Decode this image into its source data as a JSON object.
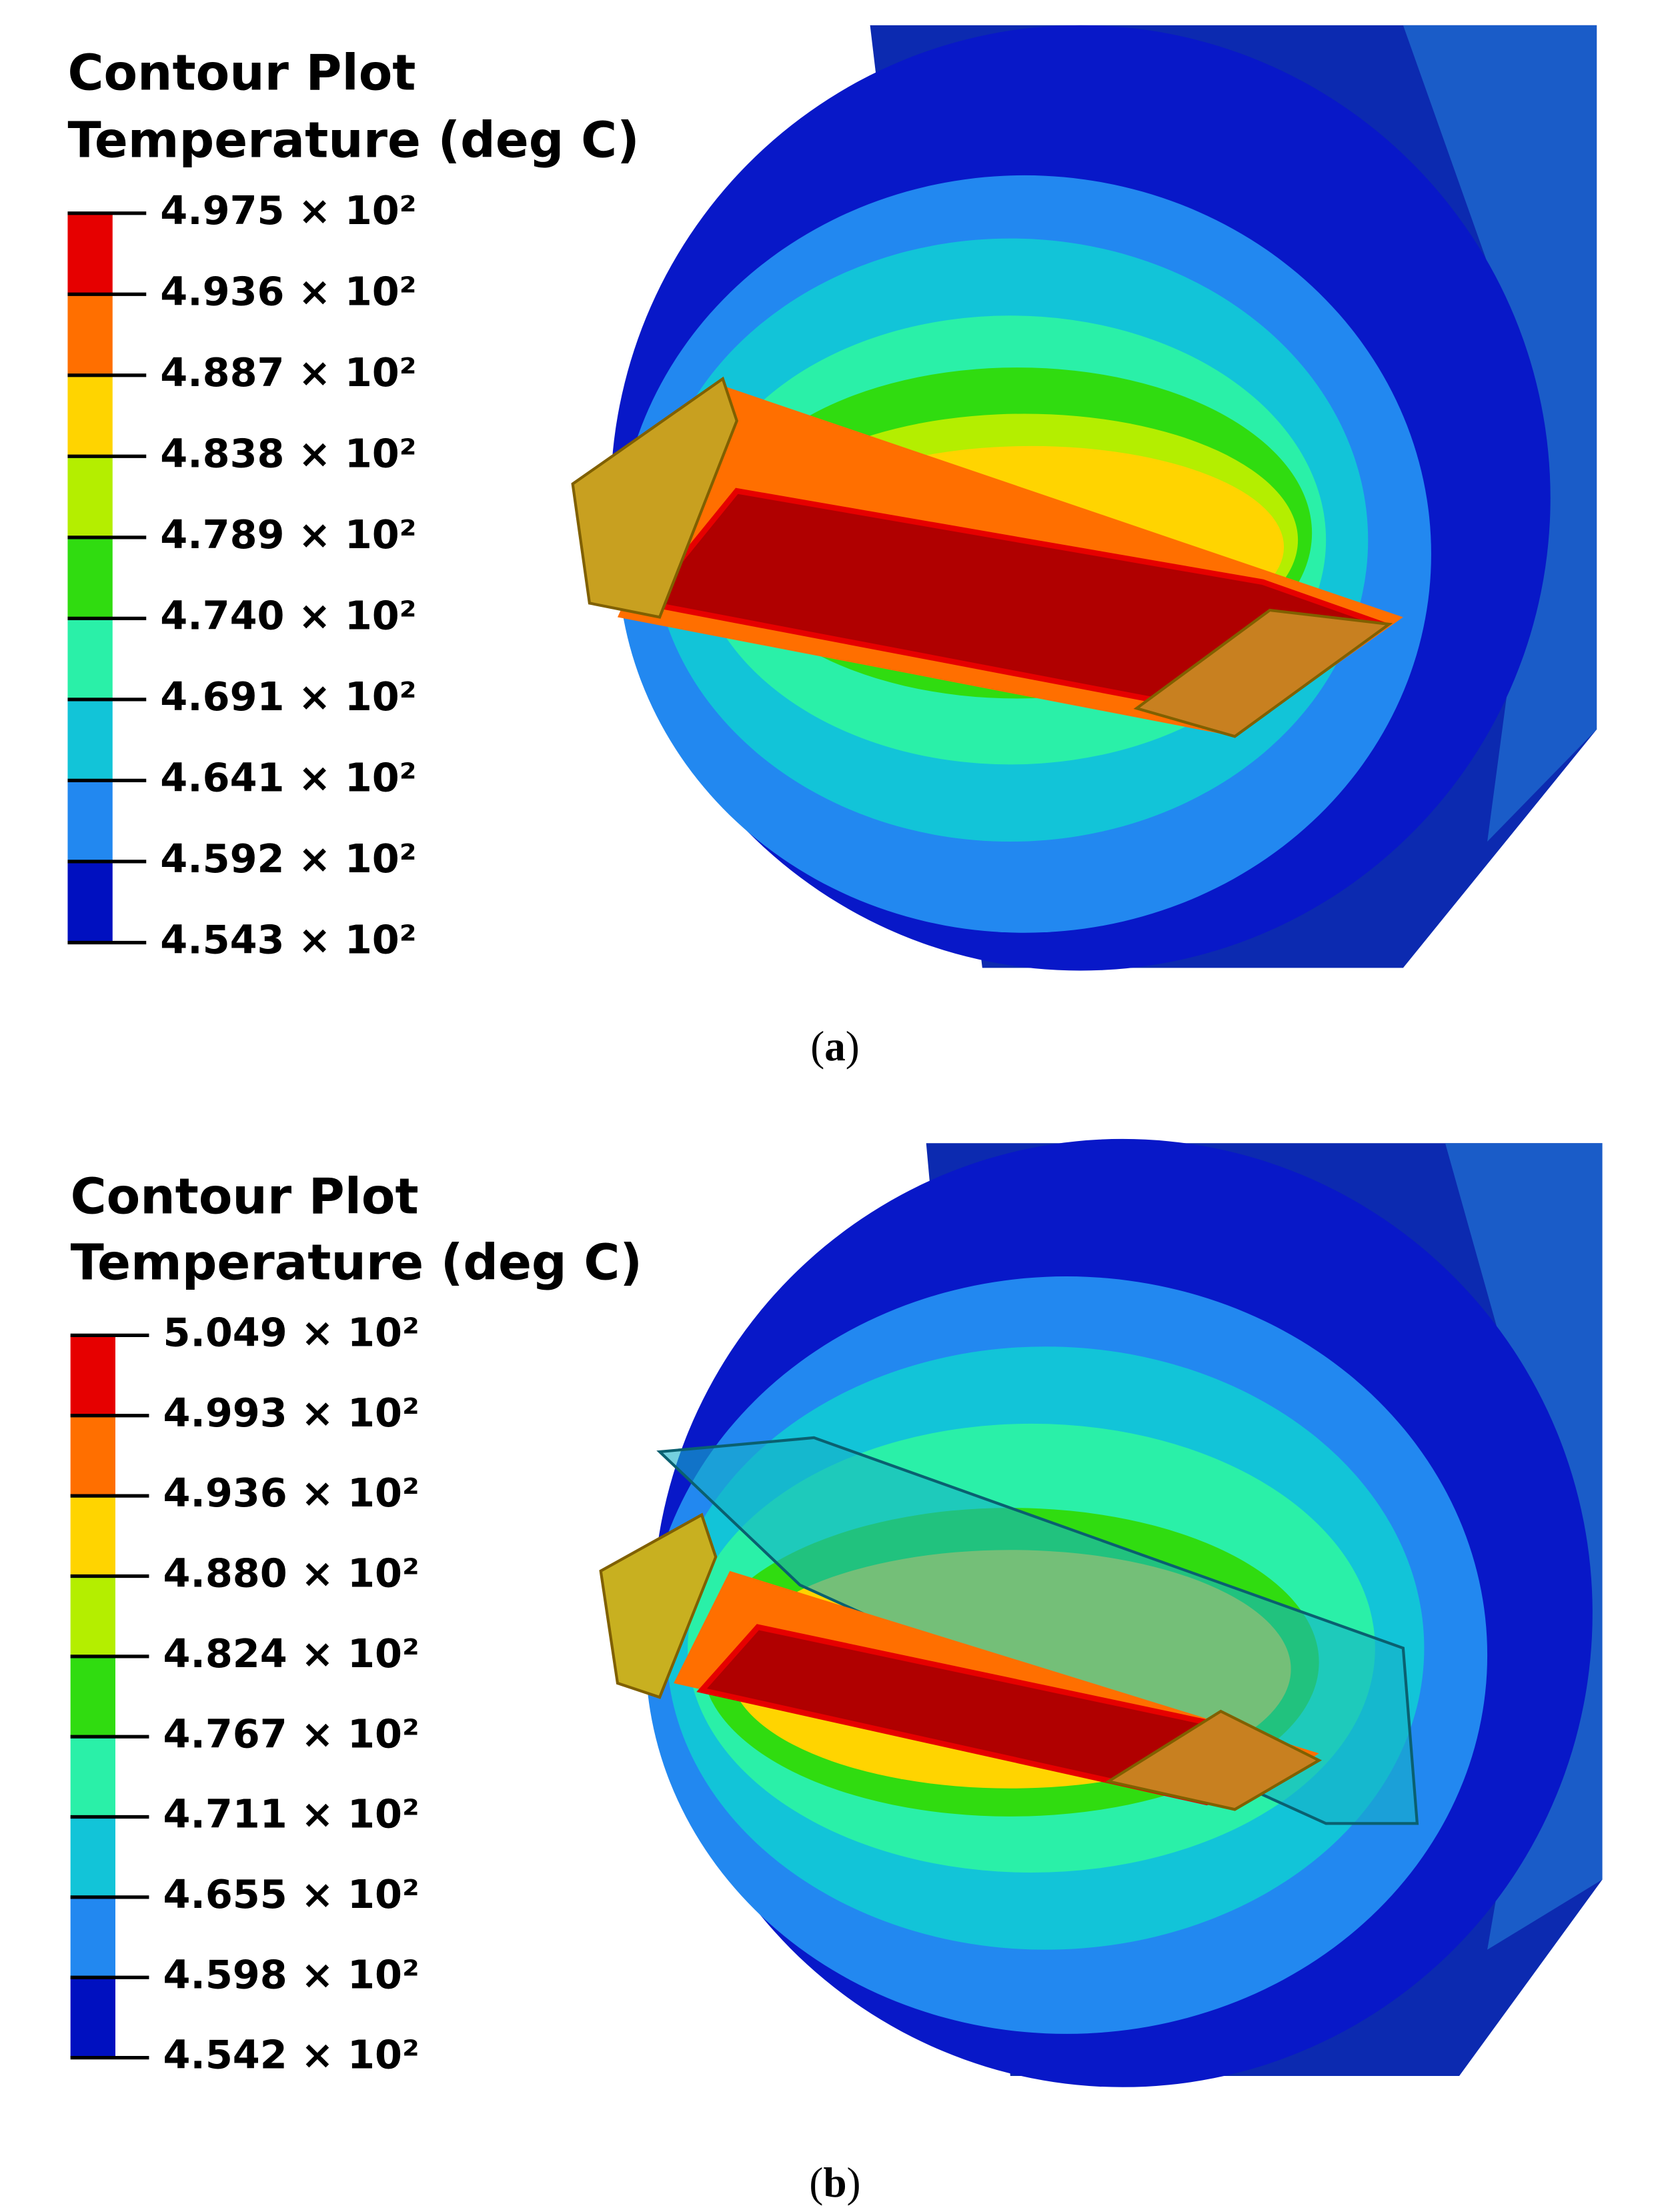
{
  "panels": [
    {
      "title": "Contour Plot",
      "subtitle": "Temperature (deg C)",
      "labels": [
        "4.975 × 10²",
        "4.936 × 10²",
        "4.887 × 10²",
        "4.838 × 10²",
        "4.789 × 10²",
        "4.740 × 10²",
        "4.691 × 10²",
        "4.641 × 10²",
        "4.592 × 10²",
        "4.543 × 10²"
      ],
      "colors": [
        "#e60000",
        "#ff6f00",
        "#ffd400",
        "#b4ee00",
        "#30dc10",
        "#2af0a8",
        "#12c4d8",
        "#2288f0",
        "#0010c0"
      ],
      "caption": [
        "(",
        "a",
        ")"
      ]
    },
    {
      "title": "Contour Plot",
      "subtitle": "Temperature (deg C)",
      "labels": [
        "5.049 × 10²",
        "4.993 × 10²",
        "4.936 × 10²",
        "4.880 × 10²",
        "4.824 × 10²",
        "4.767 × 10²",
        "4.711 × 10²",
        "4.655 × 10²",
        "4.598 × 10²",
        "4.542 × 10²"
      ],
      "colors": [
        "#e60000",
        "#ff6f00",
        "#ffd400",
        "#b4ee00",
        "#30dc10",
        "#2af0a8",
        "#12c4d8",
        "#2288f0",
        "#0010c0"
      ],
      "caption": [
        "(",
        "b",
        ")"
      ]
    }
  ]
}
